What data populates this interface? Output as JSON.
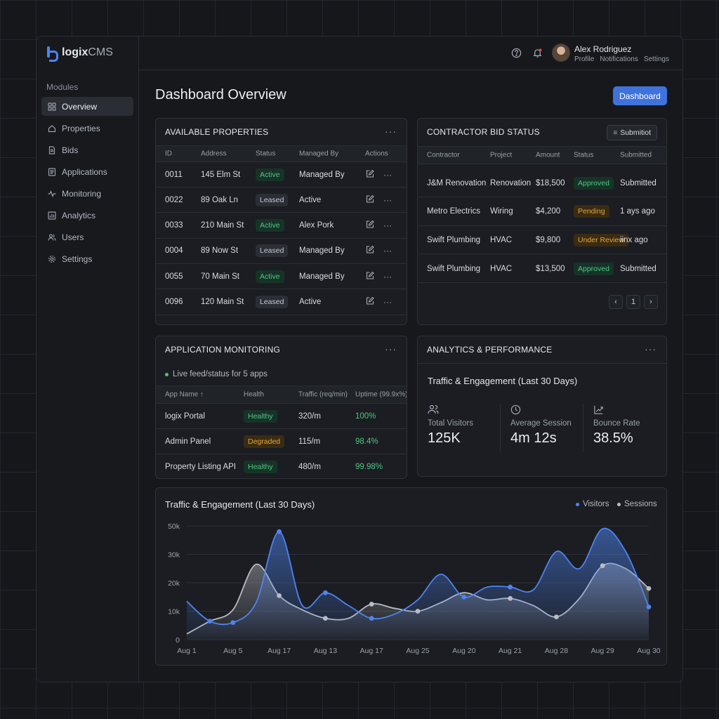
{
  "app": {
    "name_bold": "logix",
    "name_rest": "CMS"
  },
  "sidebar": {
    "modules_label": "Modules",
    "items": [
      {
        "label": "Overview",
        "icon": "grid-icon",
        "active": true
      },
      {
        "label": "Properties",
        "icon": "home-icon"
      },
      {
        "label": "Bids",
        "icon": "document-icon"
      },
      {
        "label": "Applications",
        "icon": "list-icon"
      },
      {
        "label": "Monitoring",
        "icon": "activity-icon"
      },
      {
        "label": "Analytics",
        "icon": "bar-chart-icon"
      },
      {
        "label": "Users",
        "icon": "users-icon"
      },
      {
        "label": "Settings",
        "icon": "gear-icon"
      }
    ]
  },
  "user": {
    "name": "Alex Rodriguez",
    "links": [
      "Profile",
      "Notifications",
      "Settings"
    ]
  },
  "page": {
    "title": "Dashboard Overview",
    "primary_button": "Dashboard"
  },
  "properties": {
    "title": "AVAILABLE PROPERTIES",
    "columns": [
      "ID",
      "Address",
      "Status",
      "Managed By",
      "Actions"
    ],
    "rows": [
      {
        "id": "0011",
        "address": "145 Elm St",
        "status": "Active",
        "managed": "Managed By"
      },
      {
        "id": "0022",
        "address": "89 Oak Ln",
        "status": "Leased",
        "managed": "Active"
      },
      {
        "id": "0033",
        "address": "210 Main St",
        "status": "Active",
        "managed": "Alex Pork"
      },
      {
        "id": "0004",
        "address": "89 Now St",
        "status": "Leased",
        "managed": "Managed By"
      },
      {
        "id": "0055",
        "address": "70 Main St",
        "status": "Active",
        "managed": "Managed By"
      },
      {
        "id": "0096",
        "address": "120 Main St",
        "status": "Leased",
        "managed": "Active"
      }
    ]
  },
  "bids": {
    "title": "CONTRACTOR BID STATUS",
    "button": "Submitiot",
    "columns": [
      "Contractor",
      "Project",
      "Amount",
      "Status",
      "Submitted"
    ],
    "rows": [
      {
        "contractor": "J&M Renovation",
        "project": "Renovation",
        "amount": "$18,500",
        "status": "Approved",
        "submitted": "Submitted"
      },
      {
        "contractor": "Metro Electrics",
        "project": "Wiring",
        "amount": "$4,200",
        "status": "Pending",
        "submitted": "1 ays ago"
      },
      {
        "contractor": "Swift Plumbing",
        "project": "HVAC",
        "amount": "$9,800",
        "status": "Under Review",
        "submitted": "iinx ago"
      },
      {
        "contractor": "Swift Plumbing",
        "project": "HVAC",
        "amount": "$13,500",
        "status": "Approved",
        "submitted": "Submitted"
      }
    ],
    "pager": {
      "prev": "‹",
      "page": "1",
      "next": "›"
    }
  },
  "monitoring": {
    "title": "APPLICATION MONITORING",
    "live_text": "Live feed/status for 5 apps",
    "columns": [
      "App Name ↑",
      "Health",
      "Traffic (req/min)",
      "Uptime (99.9x%)"
    ],
    "rows": [
      {
        "name": "logix Portal",
        "health": "Healthy",
        "traffic": "320/m",
        "uptime": "100%"
      },
      {
        "name": "Admin Panel",
        "health": "Degraded",
        "traffic": "115/m",
        "uptime": "98.4%"
      },
      {
        "name": "Property Listing API",
        "health": "Healthy",
        "traffic": "480/m",
        "uptime": "99.98%"
      }
    ]
  },
  "analytics": {
    "title": "ANALYTICS & PERFORMANCE",
    "subtitle": "Traffic & Engagement (Last 30 Days)",
    "stats": [
      {
        "label": "Total Visitors",
        "value": "125K",
        "icon": "users-icon"
      },
      {
        "label": "Average Session",
        "value": "4m 12s",
        "icon": "clock-icon"
      },
      {
        "label": "Bounce Rate",
        "value": "38.5%",
        "icon": "trend-icon"
      }
    ]
  },
  "colors": {
    "accent": "#3f73db",
    "visitors": "#4e84f0",
    "sessions": "#b8bcc4",
    "success": "#4fc582",
    "warning": "#e7a43a"
  },
  "chart_data": {
    "type": "area",
    "title": "Traffic & Engagement (Last 30 Days)",
    "categories": [
      "Aug 1",
      "Aug 5",
      "Aug 17",
      "Aug 13",
      "Aug 17",
      "Aug 25",
      "Aug 20",
      "Aug 21",
      "Aug 28",
      "Aug 29",
      "Aug 30"
    ],
    "y_ticks": [
      "0",
      "10k",
      "20k",
      "30k",
      "50k"
    ],
    "ylim": [
      0,
      40000
    ],
    "legend": "top-right",
    "grid": true,
    "series": [
      {
        "name": "Visitors",
        "color": "#4e84f0",
        "marker_x": [
          0.5,
          1,
          2,
          3,
          4,
          6,
          7,
          10
        ],
        "x": [
          0,
          0.5,
          1,
          1.5,
          2,
          2.5,
          3,
          3.5,
          4,
          4.5,
          5,
          5.5,
          6,
          6.5,
          7,
          7.5,
          8,
          8.5,
          9,
          9.5,
          10
        ],
        "values": [
          13500,
          6500,
          6000,
          13000,
          38000,
          12000,
          16500,
          12000,
          7500,
          9000,
          14000,
          23000,
          15000,
          18500,
          18500,
          17500,
          31000,
          25000,
          39000,
          31000,
          11500
        ]
      },
      {
        "name": "Sessions",
        "color": "#b8bcc4",
        "marker_x": [
          2,
          3,
          4,
          5,
          7,
          8,
          9,
          10
        ],
        "x": [
          0,
          0.5,
          1,
          1.5,
          2,
          2.5,
          3,
          3.5,
          4,
          4.5,
          5,
          5.5,
          6,
          6.5,
          7,
          7.5,
          8,
          8.5,
          9,
          9.5,
          10
        ],
        "values": [
          2000,
          6500,
          10500,
          26500,
          15500,
          10500,
          7500,
          7500,
          12500,
          11000,
          10000,
          13000,
          16500,
          14000,
          14500,
          12000,
          8000,
          14500,
          26000,
          25000,
          18000
        ]
      }
    ]
  }
}
